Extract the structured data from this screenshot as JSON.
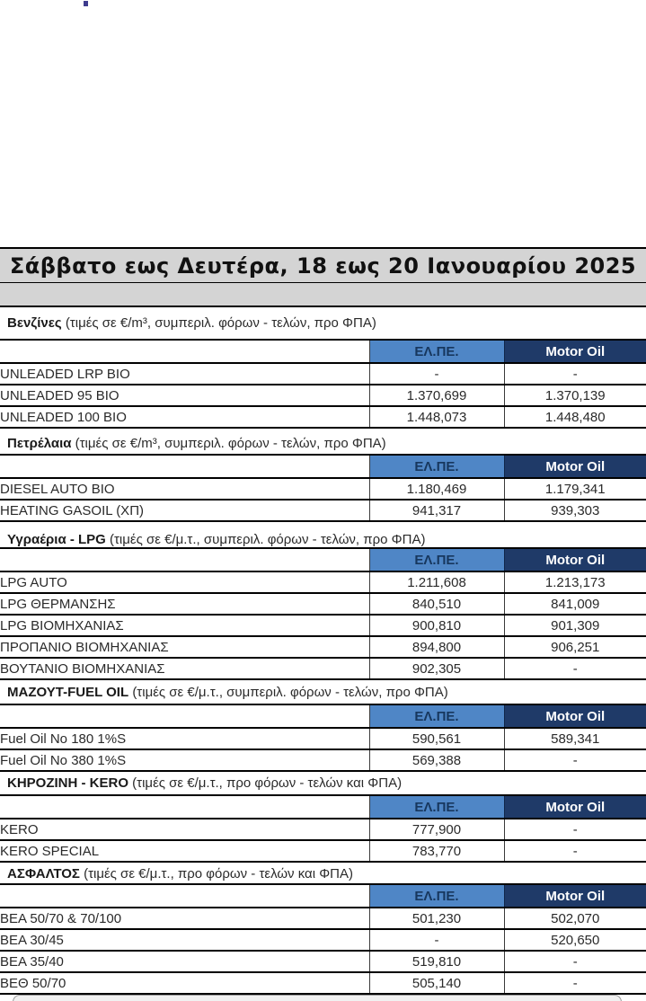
{
  "title_banner": {
    "text": "Σάββατο εως Δευτέρα, 18 εως 20 Ιανουαρίου 2025"
  },
  "table_columns": {
    "elpe": "ΕΛ.ΠΕ.",
    "motor_oil": "Motor Oil"
  },
  "sections": [
    {
      "id": "benzines",
      "name": "Βενζίνες",
      "note": "(τιμές σε €/m³, συμπεριλ. φόρων - τελών, προ ΦΠΑ)",
      "rows": [
        {
          "label": "UNLEADED LRP BIO",
          "elpe": "-",
          "motor_oil": "-"
        },
        {
          "label": "UNLEADED 95 BIO",
          "elpe": "1.370,699",
          "motor_oil": "1.370,139"
        },
        {
          "label": "UNLEADED 100 BIO",
          "elpe": "1.448,073",
          "motor_oil": "1.448,480"
        }
      ]
    },
    {
      "id": "petrelaia",
      "name": "Πετρέλαια",
      "note": "(τιμές σε €/m³, συμπεριλ. φόρων - τελών, προ ΦΠΑ)",
      "rows": [
        {
          "label": "DIESEL AUTO BIO",
          "elpe": "1.180,469",
          "motor_oil": "1.179,341"
        },
        {
          "label": "HEATING GASOIL (ΧΠ)",
          "elpe": "941,317",
          "motor_oil": "939,303"
        }
      ]
    },
    {
      "id": "ygraeria-lpg",
      "name": "Υγραέρια - LPG",
      "note": "(τιμές σε €/μ.τ., συμπεριλ. φόρων - τελών, προ ΦΠΑ)",
      "rows": [
        {
          "label": "LPG AUTO",
          "elpe": "1.211,608",
          "motor_oil": "1.213,173"
        },
        {
          "label": "LPG ΘΕΡΜΑΝΣΗΣ",
          "elpe": "840,510",
          "motor_oil": "841,009"
        },
        {
          "label": "LPG ΒΙΟΜΗΧΑΝΙΑΣ",
          "elpe": "900,810",
          "motor_oil": "901,309"
        },
        {
          "label": "ΠΡΟΠΑΝΙΟ ΒΙΟΜΗΧΑΝΙΑΣ",
          "elpe": "894,800",
          "motor_oil": "906,251"
        },
        {
          "label": "ΒΟΥΤΑΝΙΟ ΒΙΟΜΗΧΑΝΙΑΣ",
          "elpe": "902,305",
          "motor_oil": "-"
        }
      ]
    },
    {
      "id": "mazout-fuel-oil",
      "name": "ΜΑΖΟΥΤ-FUEL OIL",
      "note": "(τιμές σε €/μ.τ., συμπεριλ. φόρων - τελών, προ ΦΠΑ)",
      "rows": [
        {
          "label": "Fuel Oil No 180 1%S",
          "elpe": "590,561",
          "motor_oil": "589,341"
        },
        {
          "label": "Fuel Oil No 380 1%S",
          "elpe": "569,388",
          "motor_oil": "-"
        }
      ]
    },
    {
      "id": "kirozini-kero",
      "name": "ΚΗΡΟΖΙΝΗ - KERO",
      "note": "(τιμές σε €/μ.τ., προ φόρων - τελών και ΦΠΑ)",
      "rows": [
        {
          "label": "KERO",
          "elpe": "777,900",
          "motor_oil": "-"
        },
        {
          "label": "KERO SPECIAL",
          "elpe": "783,770",
          "motor_oil": "-"
        }
      ]
    },
    {
      "id": "asfaltos",
      "name": "ΑΣΦΑΛΤΟΣ",
      "note": "(τιμές σε €/μ.τ., προ φόρων - τελών και ΦΠΑ)",
      "rows": [
        {
          "label": "ΒΕΑ 50/70 & 70/100",
          "elpe": "501,230",
          "motor_oil": "502,070"
        },
        {
          "label": "ΒΕΑ 30/45",
          "elpe": "-",
          "motor_oil": "520,650"
        },
        {
          "label": "ΒΕΑ 35/40",
          "elpe": "519,810",
          "motor_oil": "-"
        },
        {
          "label": "ΒΕΘ 50/70",
          "elpe": "505,140",
          "motor_oil": "-"
        }
      ]
    }
  ],
  "colors": {
    "banner_bg": "#d4d4d4",
    "elpe_header_bg": "#4f86c6",
    "elpe_header_text": "#17375e",
    "motor_oil_header_bg": "#1f3a68",
    "motor_oil_header_text": "#ffffff"
  }
}
